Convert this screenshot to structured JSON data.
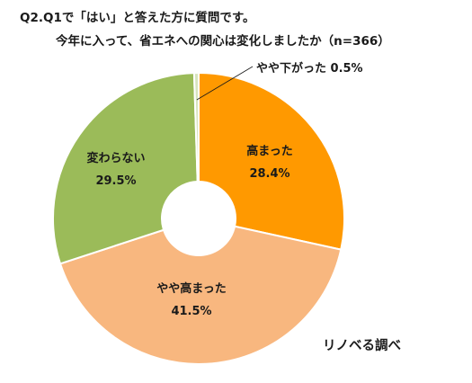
{
  "title": {
    "line1": "Q2.Q1で「はい」と答えた方に質問です。",
    "line2": "今年に入って、省エネへの関心は変化しましたか（n=366）"
  },
  "credit": "リノベる調べ",
  "chart_data": {
    "type": "pie",
    "variant": "donut",
    "title": "Q2.Q1で「はい」と答えた方に質問です。 今年に入って、省エネへの関心は変化しましたか（n=366）",
    "unit": "%",
    "start": "12 o'clock, clockwise",
    "slices": [
      {
        "label": "高まった",
        "value": 28.4,
        "value_label": "28.4%",
        "color": "#FF9900"
      },
      {
        "label": "やや高まった",
        "value": 41.5,
        "value_label": "41.5%",
        "color": "#F8B77F"
      },
      {
        "label": "変わらない",
        "value": 29.5,
        "value_label": "29.5%",
        "color": "#9BBB59"
      },
      {
        "label": "やや下がった",
        "value": 0.5,
        "value_label": "0.5%",
        "color": "#D7E4BD"
      }
    ]
  }
}
